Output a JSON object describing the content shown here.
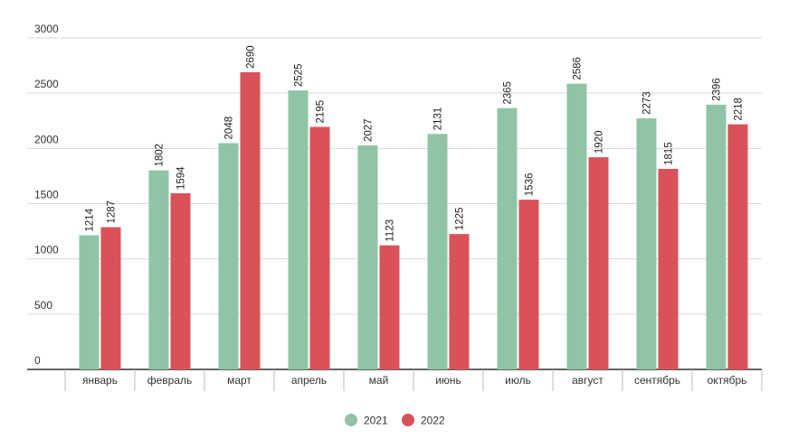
{
  "chart_data": {
    "type": "bar",
    "categories": [
      "январь",
      "февраль",
      "март",
      "апрель",
      "май",
      "июнь",
      "июль",
      "август",
      "сентябрь",
      "октябрь"
    ],
    "series": [
      {
        "name": "2021",
        "color": "#8fc5a6",
        "values": [
          1214,
          1802,
          2048,
          2525,
          2027,
          2131,
          2365,
          2586,
          2273,
          2396
        ]
      },
      {
        "name": "2022",
        "color": "#d9525a",
        "values": [
          1287,
          1594,
          2690,
          2195,
          1123,
          1225,
          1536,
          1920,
          1815,
          2218
        ]
      }
    ],
    "yticks": [
      0,
      500,
      1000,
      1500,
      2000,
      2500,
      3000
    ],
    "ylim": [
      0,
      3000
    ],
    "grid": true,
    "legend_position": "bottom-center",
    "data_labels": "vertical, above bars"
  }
}
